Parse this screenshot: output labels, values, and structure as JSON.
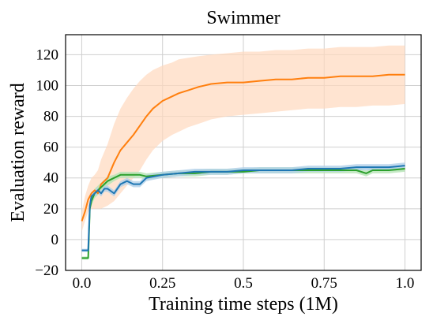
{
  "chart_data": {
    "type": "line",
    "title": "Swimmer",
    "xlabel": "Training time steps (1M)",
    "ylabel": "Evaluation reward",
    "xlim": [
      -0.05,
      1.05
    ],
    "ylim": [
      -20,
      133
    ],
    "x_ticks": [
      0.0,
      0.25,
      0.5,
      0.75,
      1.0
    ],
    "x_tick_labels": [
      "0.0",
      "0.25",
      "0.5",
      "0.75",
      "1.0"
    ],
    "y_ticks": [
      -20,
      0,
      20,
      40,
      60,
      80,
      100,
      120
    ],
    "y_tick_labels": [
      "−20",
      "0",
      "20",
      "40",
      "60",
      "80",
      "100",
      "120"
    ],
    "grid": true,
    "series": [
      {
        "color": "#ff7f0e",
        "band_color": "#ffd9bd",
        "x": [
          0.0,
          0.01,
          0.02,
          0.03,
          0.04,
          0.05,
          0.06,
          0.08,
          0.1,
          0.12,
          0.14,
          0.16,
          0.18,
          0.2,
          0.22,
          0.25,
          0.28,
          0.3,
          0.33,
          0.36,
          0.4,
          0.45,
          0.5,
          0.55,
          0.6,
          0.65,
          0.7,
          0.75,
          0.8,
          0.85,
          0.9,
          0.95,
          1.0
        ],
        "values": [
          12,
          18,
          26,
          30,
          32,
          30,
          36,
          40,
          50,
          58,
          63,
          68,
          74,
          80,
          85,
          90,
          93,
          95,
          97,
          99,
          101,
          102,
          102,
          103,
          104,
          104,
          105,
          105,
          106,
          106,
          106,
          107,
          107
        ],
        "lower": [
          5,
          12,
          18,
          20,
          20,
          20,
          20,
          22,
          25,
          30,
          35,
          40,
          45,
          52,
          58,
          64,
          68,
          70,
          73,
          75,
          78,
          80,
          81,
          82,
          83,
          84,
          85,
          85,
          86,
          86,
          87,
          87,
          88
        ],
        "upper": [
          18,
          28,
          35,
          40,
          42,
          45,
          52,
          62,
          75,
          85,
          92,
          98,
          103,
          107,
          110,
          113,
          115,
          117,
          118,
          119,
          120,
          121,
          122,
          122,
          123,
          123,
          124,
          124,
          125,
          125,
          125,
          126,
          126
        ]
      },
      {
        "color": "#2ca02c",
        "band_color": "#b5e3b5",
        "x": [
          0.0,
          0.02,
          0.025,
          0.03,
          0.04,
          0.05,
          0.06,
          0.08,
          0.1,
          0.12,
          0.15,
          0.18,
          0.2,
          0.25,
          0.3,
          0.35,
          0.4,
          0.45,
          0.5,
          0.55,
          0.6,
          0.65,
          0.7,
          0.75,
          0.8,
          0.85,
          0.88,
          0.9,
          0.95,
          1.0
        ],
        "values": [
          -12,
          -12,
          20,
          25,
          30,
          32,
          34,
          38,
          40,
          42,
          42,
          42,
          41,
          42,
          43,
          43,
          44,
          44,
          44,
          45,
          45,
          45,
          45,
          45,
          45,
          45,
          43,
          45,
          45,
          46
        ],
        "lower": [
          -13,
          -13,
          17,
          22,
          27,
          29,
          31,
          35,
          38,
          40,
          40,
          40,
          39,
          40,
          41,
          41,
          42,
          42,
          43,
          43,
          43,
          43,
          43,
          43,
          43,
          43,
          41,
          43,
          43,
          44
        ],
        "upper": [
          -11,
          -11,
          23,
          28,
          33,
          35,
          37,
          41,
          42,
          44,
          44,
          44,
          43,
          44,
          45,
          45,
          46,
          46,
          46,
          47,
          47,
          47,
          47,
          47,
          47,
          47,
          45,
          47,
          47,
          48
        ]
      },
      {
        "color": "#1f77b4",
        "band_color": "#b0cfe8",
        "x": [
          0.0,
          0.02,
          0.025,
          0.03,
          0.04,
          0.05,
          0.06,
          0.07,
          0.08,
          0.1,
          0.12,
          0.14,
          0.16,
          0.18,
          0.2,
          0.25,
          0.3,
          0.35,
          0.4,
          0.45,
          0.5,
          0.55,
          0.6,
          0.65,
          0.7,
          0.75,
          0.8,
          0.85,
          0.9,
          0.95,
          1.0
        ],
        "values": [
          -7,
          -7,
          22,
          28,
          30,
          32,
          30,
          33,
          33,
          30,
          36,
          38,
          36,
          36,
          40,
          42,
          43,
          44,
          44,
          44,
          45,
          45,
          45,
          45,
          46,
          46,
          46,
          47,
          47,
          47,
          48
        ],
        "lower": [
          -8,
          -8,
          20,
          26,
          28,
          30,
          28,
          31,
          31,
          28,
          34,
          36,
          34,
          34,
          38,
          40,
          41,
          42,
          42,
          42,
          43,
          43,
          43,
          43,
          44,
          44,
          44,
          45,
          45,
          45,
          46
        ],
        "upper": [
          -6,
          -6,
          24,
          30,
          32,
          34,
          32,
          35,
          35,
          32,
          38,
          40,
          38,
          38,
          42,
          44,
          45,
          46,
          46,
          46,
          47,
          47,
          47,
          47,
          48,
          48,
          48,
          49,
          49,
          49,
          50
        ]
      }
    ]
  }
}
